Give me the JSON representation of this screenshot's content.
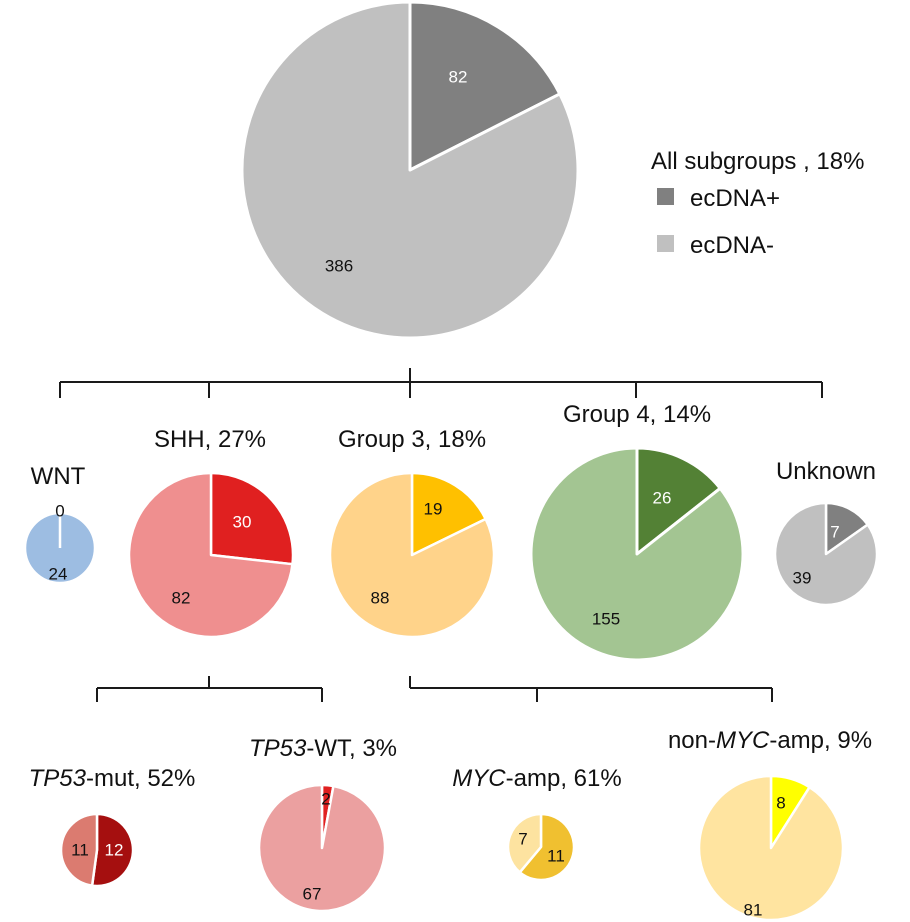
{
  "colors": {
    "tree_line": "#1a1a1a",
    "slice_border": "#ffffff"
  },
  "legend": {
    "title": "All subgroups , 18%",
    "items": [
      {
        "label": "ecDNA+",
        "color": "#808080"
      },
      {
        "label": "ecDNA-",
        "color": "#c0c0c0"
      }
    ]
  },
  "chart_data": [
    {
      "type": "pie",
      "title": "",
      "slices": [
        {
          "label": "ecDNA+",
          "value": 82,
          "color": "#808080"
        },
        {
          "label": "ecDNA-",
          "value": 386,
          "color": "#c0c0c0"
        }
      ]
    },
    {
      "type": "pie",
      "title": "WNT",
      "slices": [
        {
          "label": "ecDNA+",
          "value": 0,
          "color": "#3b6fb6"
        },
        {
          "label": "ecDNA-",
          "value": 24,
          "color": "#9dbde2"
        }
      ]
    },
    {
      "type": "pie",
      "title": "SHH, 27%",
      "slices": [
        {
          "label": "ecDNA+",
          "value": 30,
          "color": "#e02020"
        },
        {
          "label": "ecDNA-",
          "value": 82,
          "color": "#ef8f8f"
        }
      ]
    },
    {
      "type": "pie",
      "title": "Group 3, 18%",
      "slices": [
        {
          "label": "ecDNA+",
          "value": 19,
          "color": "#ffc000"
        },
        {
          "label": "ecDNA-",
          "value": 88,
          "color": "#ffd38a"
        }
      ]
    },
    {
      "type": "pie",
      "title": "Group 4, 14%",
      "slices": [
        {
          "label": "ecDNA+",
          "value": 26,
          "color": "#538135"
        },
        {
          "label": "ecDNA-",
          "value": 155,
          "color": "#a3c592"
        }
      ]
    },
    {
      "type": "pie",
      "title": "Unknown",
      "slices": [
        {
          "label": "ecDNA+",
          "value": 7,
          "color": "#808080"
        },
        {
          "label": "ecDNA-",
          "value": 39,
          "color": "#c0c0c0"
        }
      ]
    },
    {
      "type": "pie",
      "title": "TP53-mut, 52%",
      "slices": [
        {
          "label": "ecDNA+",
          "value": 12,
          "color": "#a50f0f"
        },
        {
          "label": "ecDNA-",
          "value": 11,
          "color": "#db7b70"
        }
      ]
    },
    {
      "type": "pie",
      "title": "TP53-WT, 3%",
      "slices": [
        {
          "label": "ecDNA+",
          "value": 2,
          "color": "#e02020"
        },
        {
          "label": "ecDNA-",
          "value": 67,
          "color": "#eba0a0"
        }
      ]
    },
    {
      "type": "pie",
      "title": "MYC-amp, 61%",
      "slices": [
        {
          "label": "ecDNA+",
          "value": 11,
          "color": "#f0c030"
        },
        {
          "label": "ecDNA-",
          "value": 7,
          "color": "#fde3a0"
        }
      ]
    },
    {
      "type": "pie",
      "title": "non-MYC-amp, 9%",
      "slices": [
        {
          "label": "ecDNA+",
          "value": 8,
          "color": "#ffff00"
        },
        {
          "label": "ecDNA-",
          "value": 81,
          "color": "#ffe4a0"
        }
      ]
    }
  ]
}
